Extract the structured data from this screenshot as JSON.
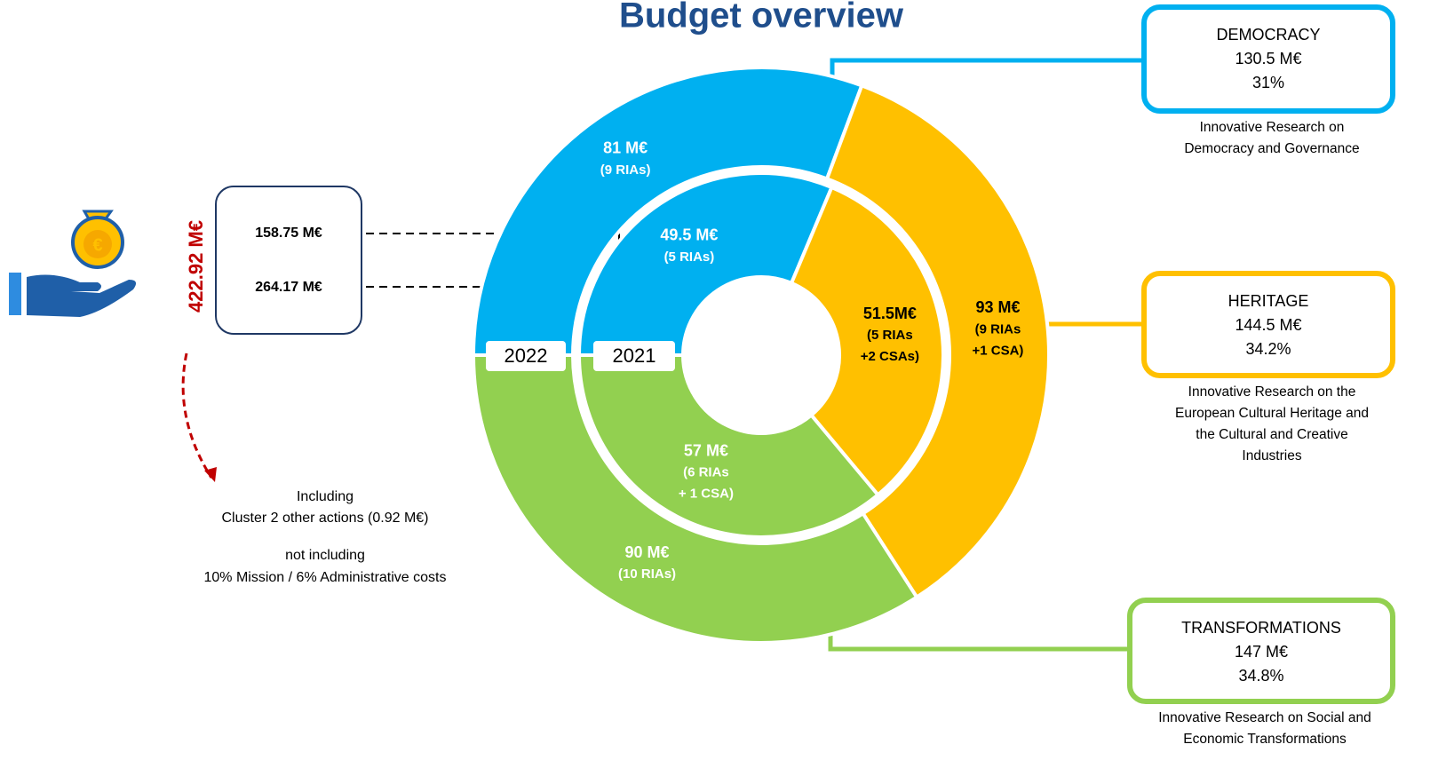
{
  "chart_data": {
    "type": "donut",
    "title": "Budget overview",
    "colors": [
      "#00b0f0",
      "#ffc000",
      "#92d050"
    ],
    "categories": [
      "DEMOCRACY",
      "HERITAGE",
      "TRANSFORMATIONS"
    ],
    "rings": [
      {
        "name": "2022",
        "values": [
          81,
          93,
          90
        ],
        "value_labels": [
          "81 M€",
          "93 M€",
          "90 M€"
        ],
        "notes": [
          [
            "(9 RIAs)"
          ],
          [
            "(9 RIAs",
            "+1 CSA)"
          ],
          [
            "(10 RIAs)"
          ]
        ]
      },
      {
        "name": "2021",
        "values": [
          49.5,
          51.5,
          57
        ],
        "value_labels": [
          "49.5 M€",
          "51.5M€",
          "57 M€"
        ],
        "notes": [
          [
            "(5 RIAs)"
          ],
          [
            "(5 RIAs",
            "+2 CSAs)"
          ],
          [
            "(6 RIAs",
            "+ 1 CSA)"
          ]
        ]
      }
    ],
    "total": "422.92 M€",
    "year_totals": [
      "158.75 M€",
      "264.17 M€"
    ],
    "footnote": [
      "Including",
      "Cluster 2 other actions (0.92 M€)",
      "not including",
      "10% Mission / 6% Administrative costs"
    ],
    "panels": [
      {
        "amount": "130.5 M€",
        "share": "31%",
        "description": [
          "Innovative Research on",
          "Democracy and Governance"
        ]
      },
      {
        "amount": "144.5 M€",
        "share": "34.2%",
        "description": [
          "Innovative Research on the",
          "European Cultural Heritage and",
          "the Cultural and Creative",
          "Industries"
        ]
      },
      {
        "amount": "147 M€",
        "share": "34.8%",
        "description": [
          "Innovative Research on Social and",
          "Economic Transformations"
        ]
      }
    ]
  }
}
